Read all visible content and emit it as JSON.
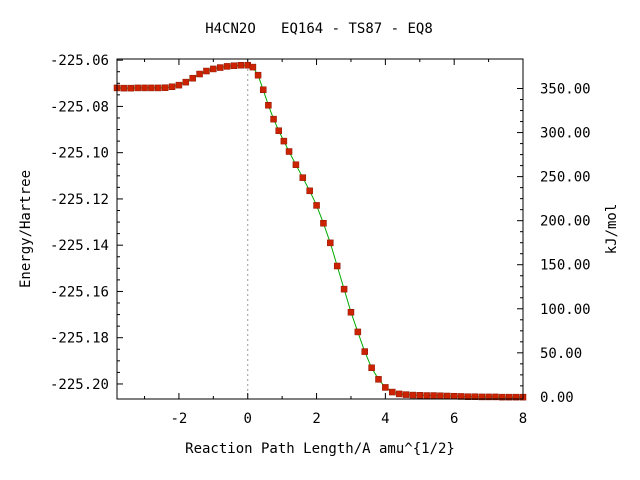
{
  "chart_data": {
    "type": "line",
    "title": "H4CN2O   EQ164 - TS87 - EQ8",
    "xlabel": "Reaction Path Length/A amu^{1/2}",
    "ylabel": "Energy/Hartree",
    "y2label": "kJ/mol",
    "xlim": [
      -3.8,
      8.0
    ],
    "ylim": [
      -225.2065,
      -225.0595
    ],
    "y2lim": [
      -2.4,
      383.5
    ],
    "x_ticks": [
      -2,
      0,
      2,
      4,
      6,
      8
    ],
    "x_tick_labels": [
      "-2",
      "0",
      "2",
      "4",
      "6",
      "8"
    ],
    "y_ticks": [
      -225.06,
      -225.08,
      -225.1,
      -225.12,
      -225.14,
      -225.16,
      -225.18,
      -225.2
    ],
    "y_tick_labels": [
      "-225.06",
      "-225.08",
      "-225.10",
      "-225.12",
      "-225.14",
      "-225.16",
      "-225.18",
      "-225.20"
    ],
    "y2_ticks": [
      0,
      50,
      100,
      150,
      200,
      250,
      300,
      350
    ],
    "y2_tick_labels": [
      "0.00",
      "50.00",
      "100.00",
      "150.00",
      "200.00",
      "250.00",
      "300.00",
      "350.00"
    ],
    "ts_marker_x": 0.0,
    "grid": false,
    "line_color": "#00aa00",
    "marker_color": "#cc2200",
    "series": [
      {
        "x": [
          -3.8,
          -3.6,
          -3.4,
          -3.2,
          -3.0,
          -2.8,
          -2.6,
          -2.4,
          -2.2,
          -2.0,
          -1.8,
          -1.6,
          -1.4,
          -1.2,
          -1.0,
          -0.8,
          -0.6,
          -0.4,
          -0.2,
          0.0,
          0.15,
          0.3,
          0.45,
          0.6,
          0.75,
          0.9,
          1.05,
          1.2,
          1.4,
          1.6,
          1.8,
          2.0,
          2.2,
          2.4,
          2.6,
          2.8,
          3.0,
          3.2,
          3.4,
          3.6,
          3.8,
          4.0,
          4.2,
          4.4,
          4.6,
          4.8,
          5.0,
          5.2,
          5.4,
          5.6,
          5.8,
          6.0,
          6.2,
          6.4,
          6.6,
          6.8,
          7.0,
          7.2,
          7.4,
          7.6,
          7.8,
          8.0
        ],
        "y": [
          -225.072,
          -225.0721,
          -225.0721,
          -225.072,
          -225.072,
          -225.072,
          -225.072,
          -225.0719,
          -225.0715,
          -225.0708,
          -225.0695,
          -225.0678,
          -225.066,
          -225.0647,
          -225.0638,
          -225.0632,
          -225.0627,
          -225.0624,
          -225.0622,
          -225.0622,
          -225.063,
          -225.0665,
          -225.0728,
          -225.0795,
          -225.0855,
          -225.0905,
          -225.095,
          -225.0995,
          -225.1052,
          -225.1108,
          -225.1165,
          -225.1228,
          -225.1305,
          -225.139,
          -225.149,
          -225.159,
          -225.169,
          -225.1775,
          -225.186,
          -225.193,
          -225.198,
          -225.2015,
          -225.2035,
          -225.2043,
          -225.2046,
          -225.2048,
          -225.2049,
          -225.205,
          -225.205,
          -225.2051,
          -225.2052,
          -225.2053,
          -225.2054,
          -225.2055,
          -225.2055,
          -225.2056,
          -225.2056,
          -225.2056,
          -225.2057,
          -225.2057,
          -225.2057,
          -225.2057
        ]
      }
    ]
  }
}
